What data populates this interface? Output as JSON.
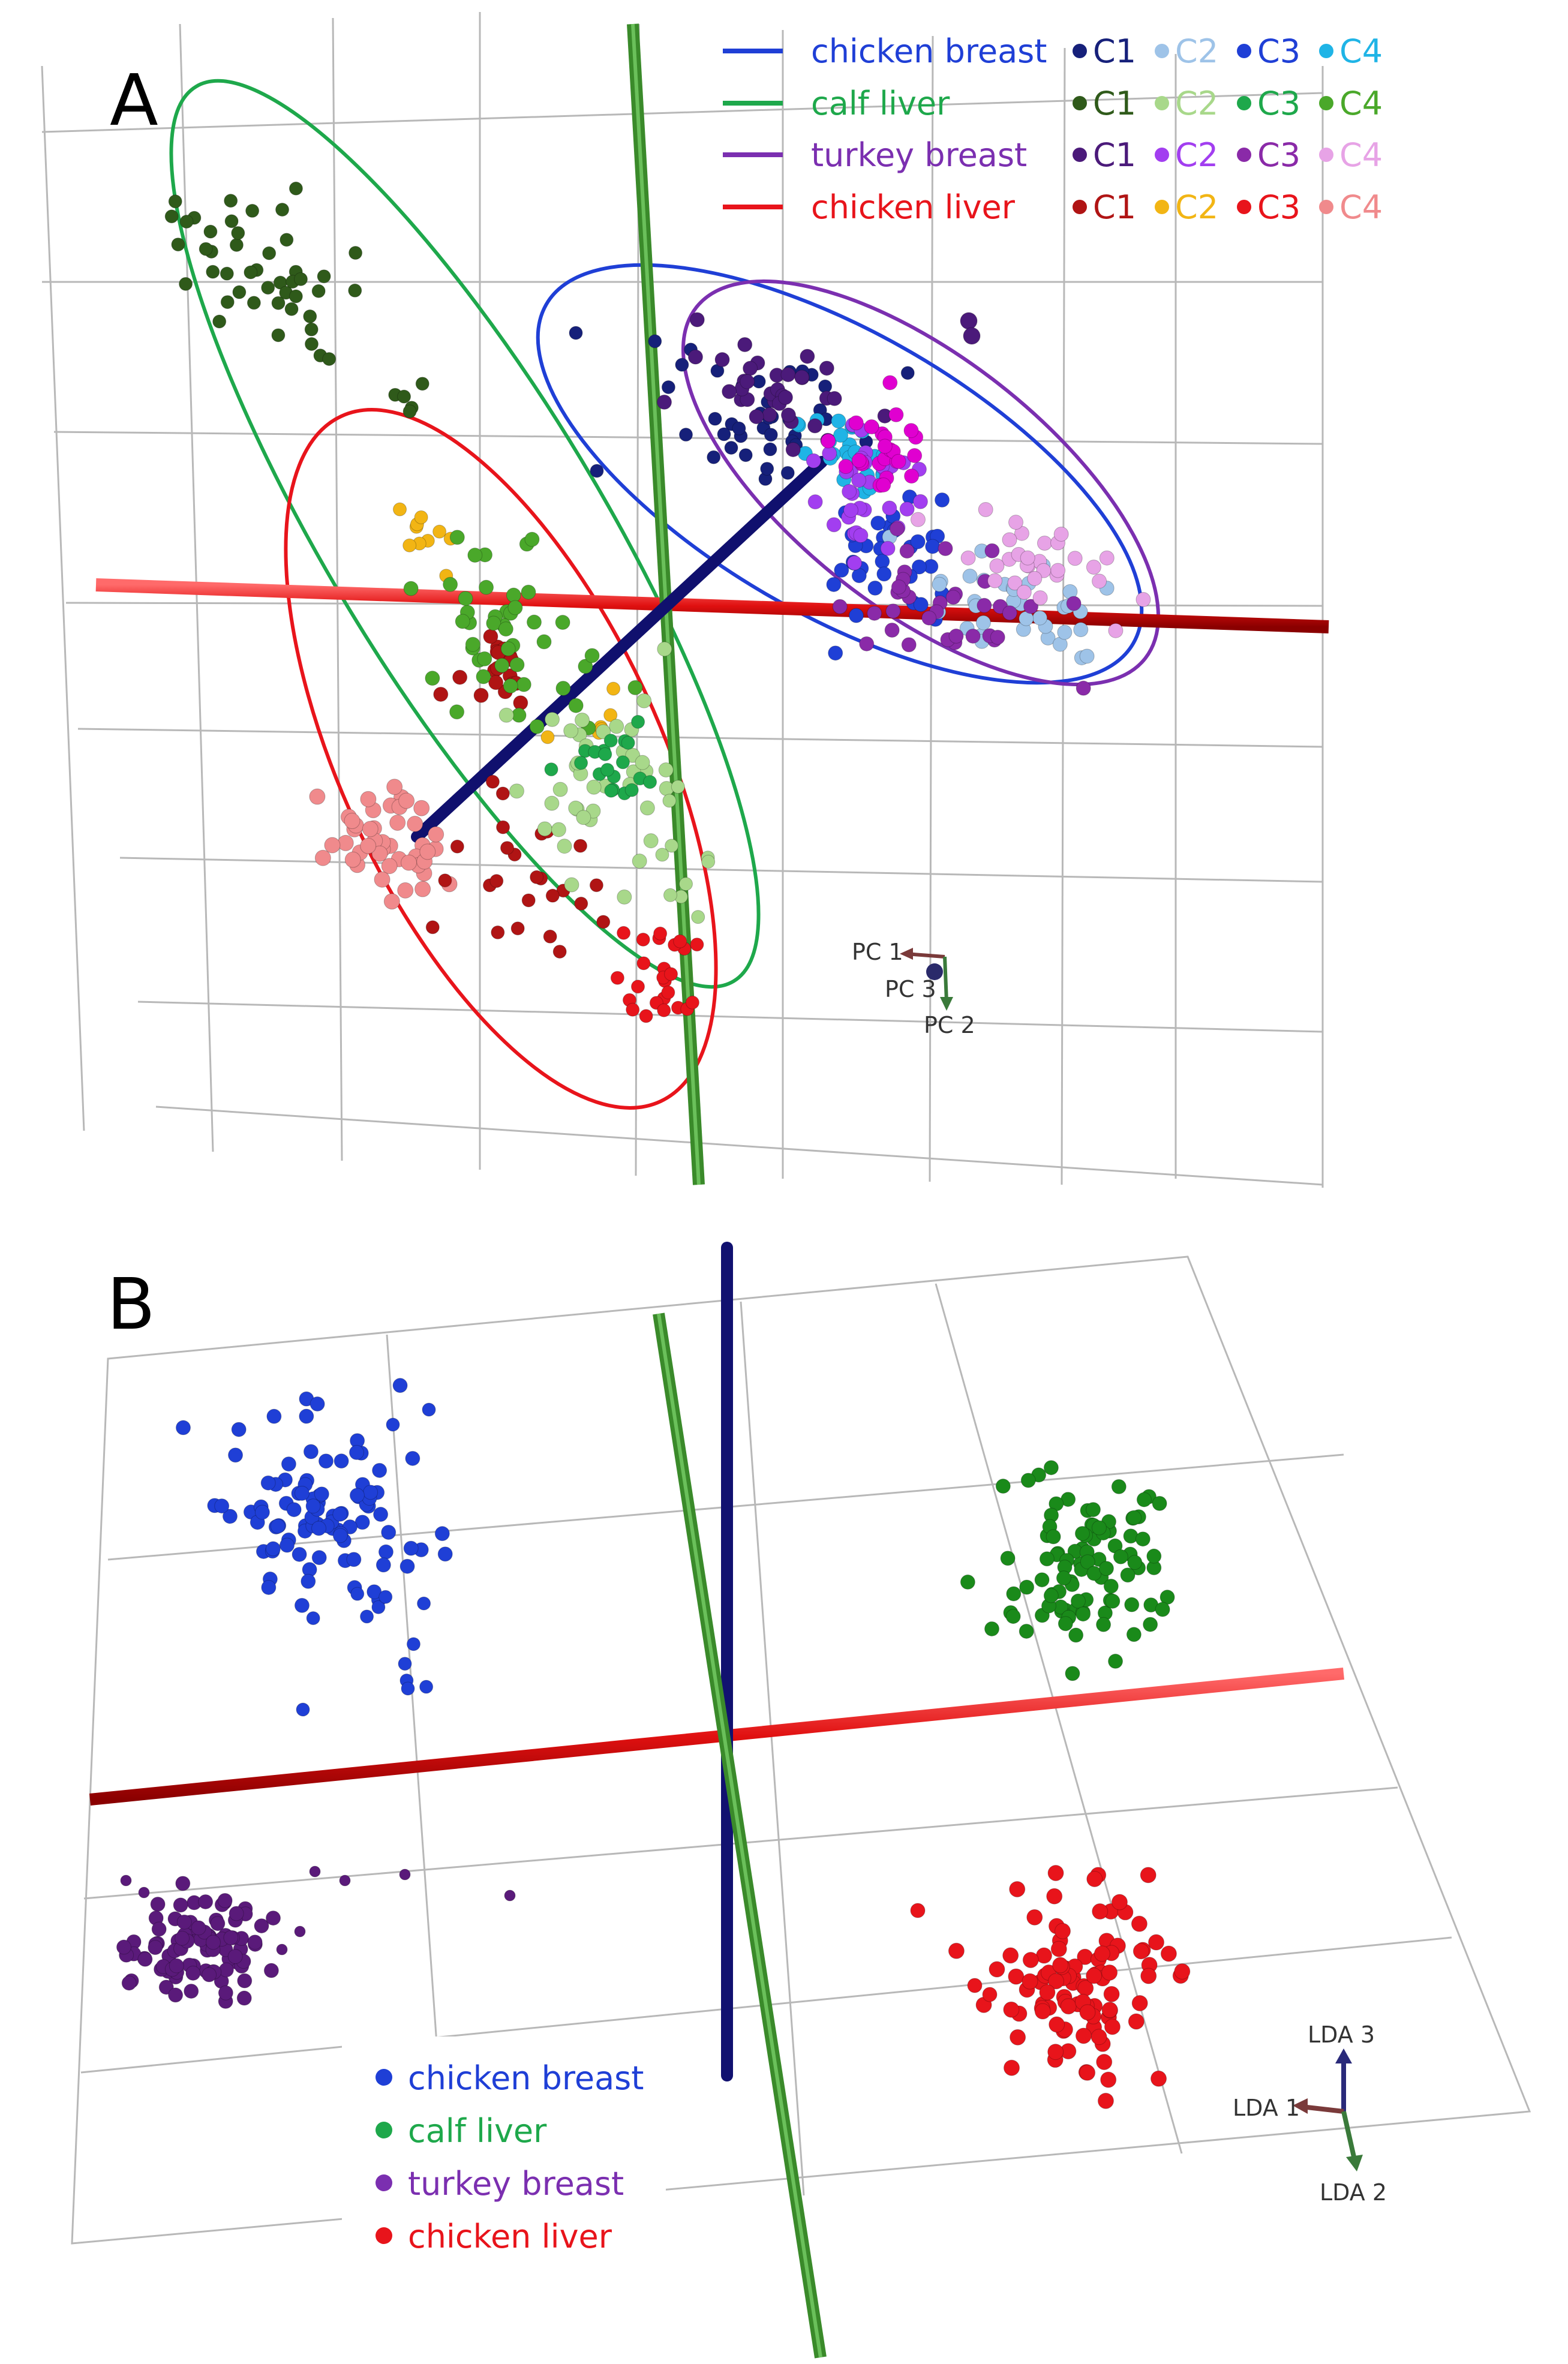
{
  "figure": {
    "panels": [
      {
        "label": "A",
        "legend": {
          "groups": [
            {
              "name": "chicken breast",
              "line_color": "#1f3fd6",
              "text_color": "#1f3fd6",
              "clusters": [
                {
                  "label": "C1",
                  "color": "#16207a"
                },
                {
                  "label": "C2",
                  "color": "#9ec3e8"
                },
                {
                  "label": "C3",
                  "color": "#1f3fd6"
                },
                {
                  "label": "C4",
                  "color": "#1fb4e6"
                }
              ]
            },
            {
              "name": "calf liver",
              "line_color": "#1ea84b",
              "text_color": "#1ea84b",
              "clusters": [
                {
                  "label": "C1",
                  "color": "#2f5a1a"
                },
                {
                  "label": "C2",
                  "color": "#a8d88a"
                },
                {
                  "label": "C3",
                  "color": "#1ea84b"
                },
                {
                  "label": "C4",
                  "color": "#4aa82a"
                }
              ]
            },
            {
              "name": "turkey breast",
              "line_color": "#7b2fb0",
              "text_color": "#7b2fb0",
              "clusters": [
                {
                  "label": "C1",
                  "color": "#4b1a7a"
                },
                {
                  "label": "C2",
                  "color": "#a23ef0"
                },
                {
                  "label": "C3",
                  "color": "#8a2aa8"
                },
                {
                  "label": "C4",
                  "color": "#e7a3e6"
                }
              ]
            },
            {
              "name": "chicken liver",
              "line_color": "#e8141b",
              "text_color": "#e8141b",
              "clusters": [
                {
                  "label": "C1",
                  "color": "#b01414"
                },
                {
                  "label": "C2",
                  "color": "#f2b514"
                },
                {
                  "label": "C3",
                  "color": "#e8141b"
                },
                {
                  "label": "C4",
                  "color": "#f08a8c"
                }
              ]
            }
          ]
        },
        "axes_labels": [
          "PC 1",
          "PC 3",
          "PC 2"
        ]
      },
      {
        "label": "B",
        "legend": {
          "groups": [
            {
              "name": "chicken breast",
              "color": "#1f3fd6"
            },
            {
              "name": "calf liver",
              "color": "#1ea84b"
            },
            {
              "name": "turkey breast",
              "color": "#7b2fb0"
            },
            {
              "name": "chicken liver",
              "color": "#e8141b"
            }
          ]
        },
        "axes_labels": [
          "LDA 3",
          "LDA 1",
          "LDA 2"
        ]
      }
    ]
  },
  "chart_data": [
    {
      "type": "scatter",
      "title": "",
      "projection": "3D PCA scores with 95% confidence ellipses per sample type",
      "axes": [
        "PC 1",
        "PC 2",
        "PC 3"
      ],
      "series": [
        {
          "name": "chicken breast",
          "sub_clusters": [
            "C1",
            "C2",
            "C3",
            "C4"
          ],
          "color": "#1f3fd6"
        },
        {
          "name": "calf liver",
          "sub_clusters": [
            "C1",
            "C2",
            "C3",
            "C4"
          ],
          "color": "#1ea84b"
        },
        {
          "name": "turkey breast",
          "sub_clusters": [
            "C1",
            "C2",
            "C3",
            "C4"
          ],
          "color": "#7b2fb0"
        },
        {
          "name": "chicken liver",
          "sub_clusters": [
            "C1",
            "C2",
            "C3",
            "C4"
          ],
          "color": "#e8141b"
        }
      ],
      "grid": true,
      "legend_position": "top-right"
    },
    {
      "type": "scatter",
      "title": "",
      "projection": "3D LDA scores",
      "axes": [
        "LDA 1",
        "LDA 2",
        "LDA 3"
      ],
      "series": [
        {
          "name": "chicken breast",
          "color": "#1f3fd6",
          "quadrant": "upper-left"
        },
        {
          "name": "calf liver",
          "color": "#1ea84b",
          "quadrant": "upper-right"
        },
        {
          "name": "turkey breast",
          "color": "#7b2fb0",
          "quadrant": "lower-left"
        },
        {
          "name": "chicken liver",
          "color": "#e8141b",
          "quadrant": "lower-right"
        }
      ],
      "grid": true,
      "legend_position": "bottom-left"
    }
  ]
}
